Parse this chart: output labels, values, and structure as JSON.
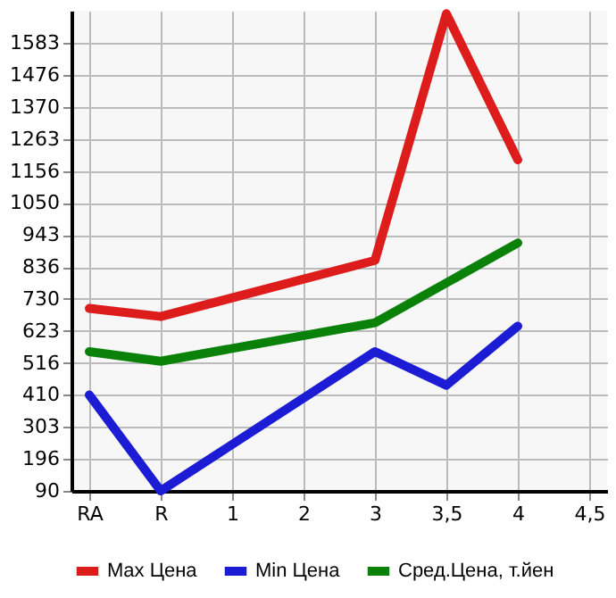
{
  "chart_data": {
    "type": "line",
    "categories": [
      "RA",
      "R",
      "1",
      "2",
      "3",
      "3,5",
      "4",
      "4,5"
    ],
    "series": [
      {
        "name": "Max Цена",
        "color": "#dd1c1c",
        "values": [
          698,
          671,
          null,
          null,
          858,
          1680,
          1193,
          null
        ]
      },
      {
        "name": "Min Цена",
        "color": "#1c1cd4",
        "values": [
          410,
          90,
          null,
          null,
          554,
          442,
          639,
          null
        ]
      },
      {
        "name": "Сред.Цена, т.йен",
        "color": "#0a820a",
        "values": [
          554,
          522,
          null,
          null,
          650,
          null,
          916,
          null
        ]
      }
    ],
    "ylim": [
      90,
      1690
    ],
    "yticks": [
      90,
      196,
      303,
      410,
      516,
      623,
      730,
      836,
      943,
      1050,
      1156,
      1263,
      1370,
      1476,
      1583
    ],
    "grid": true,
    "legend": "bottom",
    "marker": "none",
    "line_style": "solid"
  }
}
